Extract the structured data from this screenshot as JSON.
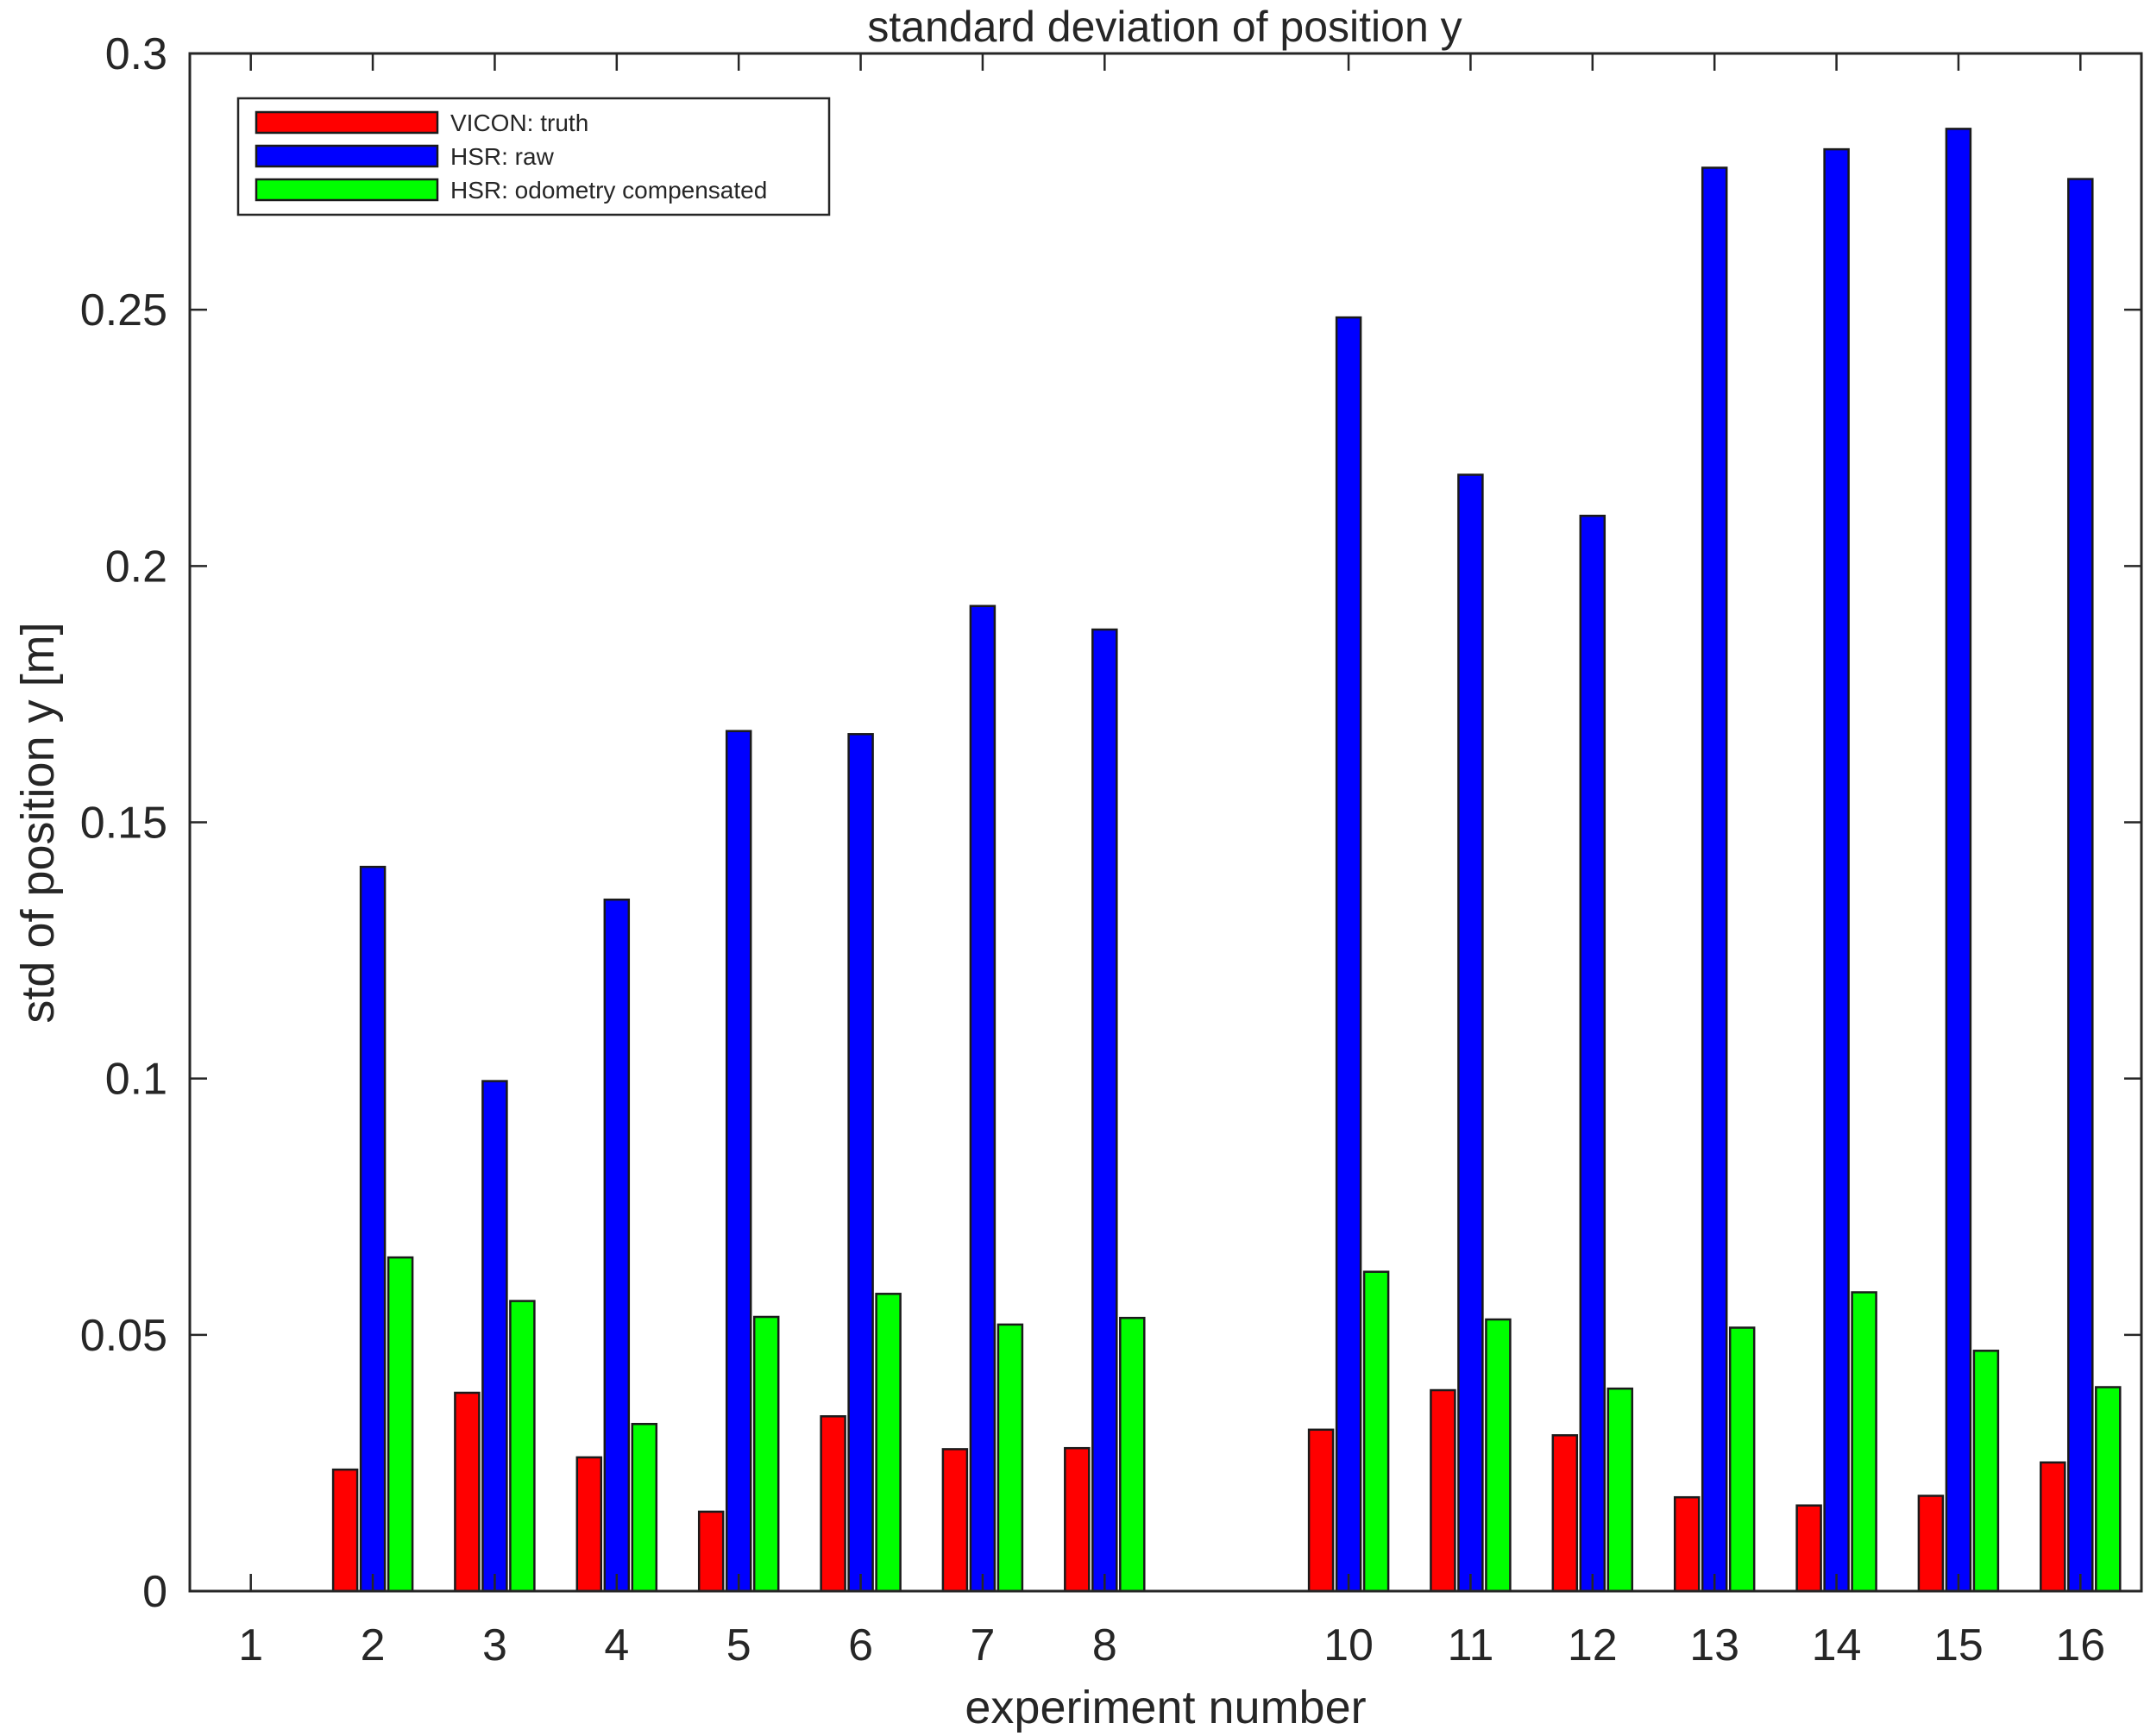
{
  "chart_data": {
    "type": "bar",
    "title": "standard deviation of position y",
    "xlabel": "experiment number",
    "ylabel": "std of position y [m]",
    "ylim": [
      0,
      0.3
    ],
    "yticks": [
      "0",
      "0.05",
      "0.1",
      "0.15",
      "0.2",
      "0.25",
      "0.3"
    ],
    "xlim": [
      0.5,
      16.5
    ],
    "categories": [
      "1",
      "2",
      "3",
      "4",
      "5",
      "6",
      "7",
      "8",
      "10",
      "11",
      "12",
      "13",
      "14",
      "15",
      "16"
    ],
    "x": [
      1,
      2,
      3,
      4,
      5,
      6,
      7,
      8,
      10,
      11,
      12,
      13,
      14,
      15,
      16
    ],
    "series": [
      {
        "name": "VICON: truth",
        "color": "#ff0000",
        "values": [
          0,
          0.0237,
          0.0387,
          0.0261,
          0.0155,
          0.0341,
          0.0277,
          0.0279,
          0.0315,
          0.0392,
          0.0304,
          0.0183,
          0.0167,
          0.0186,
          0.0251
        ]
      },
      {
        "name": "HSR: raw",
        "color": "#0000ff",
        "values": [
          0,
          0.1413,
          0.0995,
          0.1349,
          0.1678,
          0.1672,
          0.1922,
          0.1876,
          0.2485,
          0.2178,
          0.2098,
          0.2777,
          0.2813,
          0.2853,
          0.2755
        ]
      },
      {
        "name": "HSR: odometry compensated",
        "color": "#00ff00",
        "values": [
          0,
          0.0651,
          0.0566,
          0.0326,
          0.0535,
          0.058,
          0.052,
          0.0533,
          0.0623,
          0.053,
          0.0395,
          0.0514,
          0.0583,
          0.0469,
          0.0398
        ]
      }
    ],
    "legend_position": "top-left",
    "grid": false
  }
}
